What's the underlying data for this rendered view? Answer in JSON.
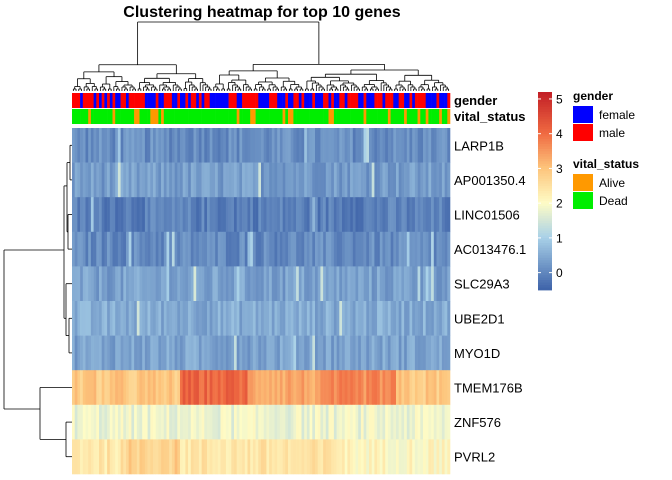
{
  "chart_data": {
    "type": "heatmap",
    "title": "Clustering heatmap for top 10 genes",
    "genes": [
      "LARP1B",
      "AP001350.4",
      "LINC01506",
      "AC013476.1",
      "SLC29A3",
      "UBE2D1",
      "MYO1D",
      "TMEM176B",
      "ZNF576",
      "PVRL2"
    ],
    "annotation_tracks": [
      "gender",
      "vital_status"
    ],
    "n_samples": 140,
    "gene_base_values": {
      "LARP1B": 0.1,
      "AP001350.4": 0.3,
      "LINC01506": -0.1,
      "AC013476.1": 0.05,
      "SLC29A3": 0.35,
      "UBE2D1": 0.5,
      "MYO1D": 0.4,
      "TMEM176B": 3.2,
      "ZNF576": 1.8,
      "PVRL2": 2.4
    },
    "gene_clusters": [
      [
        "LARP1B",
        "AP001350.4",
        "LINC01506",
        "AC013476.1",
        "SLC29A3",
        "UBE2D1",
        "MYO1D"
      ],
      [
        "TMEM176B",
        "ZNF576",
        "PVRL2"
      ]
    ],
    "color_scale": {
      "min": -0.5,
      "max": 5.2,
      "ticks": [
        0,
        1,
        2,
        3,
        4,
        5
      ],
      "stops": [
        {
          "value": -0.5,
          "color": "#3d62a8"
        },
        {
          "value": 1.0,
          "color": "#a8d0e8"
        },
        {
          "value": 2.0,
          "color": "#fefcc6"
        },
        {
          "value": 3.0,
          "color": "#fdc57c"
        },
        {
          "value": 4.0,
          "color": "#f06b42"
        },
        {
          "value": 5.2,
          "color": "#c21e26"
        }
      ]
    },
    "legends": {
      "gender": {
        "title": "gender",
        "items": [
          {
            "label": "female",
            "color": "#0000ff"
          },
          {
            "label": "male",
            "color": "#ff0000"
          }
        ]
      },
      "vital_status": {
        "title": "vital_status",
        "items": [
          {
            "label": "Alive",
            "color": "#ff9900"
          },
          {
            "label": "Dead",
            "color": "#00ee00"
          }
        ]
      }
    }
  }
}
